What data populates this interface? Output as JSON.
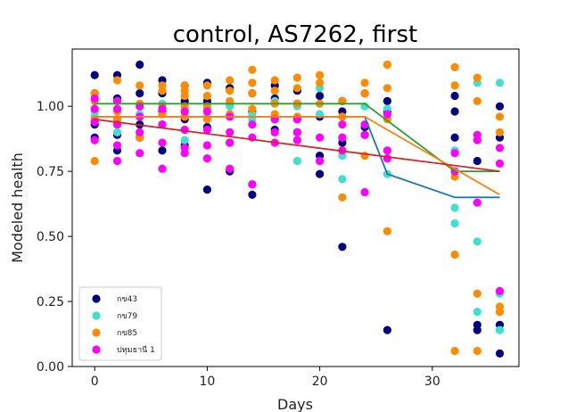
{
  "chart_data": {
    "type": "scatter",
    "title": "control, AS7262, first",
    "xlabel": "Days",
    "ylabel": "Modeled health",
    "xlim": [
      -2,
      37.7
    ],
    "ylim": [
      0,
      1.22
    ],
    "x_ticks": [
      0,
      10,
      20,
      30
    ],
    "y_ticks": [
      "0.00",
      "0.25",
      "0.50",
      "0.75",
      "1.00"
    ],
    "grid": false,
    "legend_position": "lower-left",
    "series": [
      {
        "name": "กข43",
        "color": "#000080",
        "points": [
          [
            0,
            1.12
          ],
          [
            0,
            1.05
          ],
          [
            0,
            0.93
          ],
          [
            0,
            0.88
          ],
          [
            2,
            1.12
          ],
          [
            2,
            1.03
          ],
          [
            2,
            0.95
          ],
          [
            2,
            0.89
          ],
          [
            2,
            0.83
          ],
          [
            4,
            1.16
          ],
          [
            4,
            1.05
          ],
          [
            4,
            0.93
          ],
          [
            4,
            0.88
          ],
          [
            6,
            1.1
          ],
          [
            6,
            1.05
          ],
          [
            6,
            0.98
          ],
          [
            6,
            0.83
          ],
          [
            8,
            1.08
          ],
          [
            8,
            1.02
          ],
          [
            8,
            0.95
          ],
          [
            8,
            0.85
          ],
          [
            10,
            1.09
          ],
          [
            10,
            1.02
          ],
          [
            10,
            0.92
          ],
          [
            10,
            0.68
          ],
          [
            12,
            1.07
          ],
          [
            12,
            1.01
          ],
          [
            12,
            0.86
          ],
          [
            12,
            0.75
          ],
          [
            14,
            1.05
          ],
          [
            14,
            0.98
          ],
          [
            14,
            0.7
          ],
          [
            14,
            0.66
          ],
          [
            16,
            1.08
          ],
          [
            16,
            1.03
          ],
          [
            16,
            0.95
          ],
          [
            16,
            0.91
          ],
          [
            18,
            1.06
          ],
          [
            18,
            1.01
          ],
          [
            18,
            0.95
          ],
          [
            18,
            0.9
          ],
          [
            20,
            1.04
          ],
          [
            20,
            0.96
          ],
          [
            20,
            0.81
          ],
          [
            20,
            0.74
          ],
          [
            22,
            1.02
          ],
          [
            22,
            0.98
          ],
          [
            22,
            0.86
          ],
          [
            22,
            0.46
          ],
          [
            24,
            1.05
          ],
          [
            24,
            0.92
          ],
          [
            24,
            0.89
          ],
          [
            26,
            1.02
          ],
          [
            26,
            0.98
          ],
          [
            26,
            0.14
          ],
          [
            32,
            1.04
          ],
          [
            32,
            0.98
          ],
          [
            32,
            0.88
          ],
          [
            34,
            0.79
          ],
          [
            34,
            0.16
          ],
          [
            34,
            0.14
          ],
          [
            36,
            1.0
          ],
          [
            36,
            0.88
          ],
          [
            36,
            0.16
          ],
          [
            36,
            0.05
          ]
        ]
      },
      {
        "name": "กข79",
        "color": "#40e0d0",
        "points": [
          [
            0,
            0.96
          ],
          [
            0,
            0.98
          ],
          [
            2,
            0.98
          ],
          [
            2,
            0.9
          ],
          [
            4,
            0.97
          ],
          [
            4,
            0.89
          ],
          [
            6,
            1.01
          ],
          [
            6,
            0.93
          ],
          [
            8,
            0.98
          ],
          [
            8,
            0.87
          ],
          [
            10,
            0.99
          ],
          [
            10,
            0.96
          ],
          [
            12,
            1.0
          ],
          [
            12,
            0.86
          ],
          [
            14,
            0.97
          ],
          [
            14,
            0.95
          ],
          [
            16,
            1.02
          ],
          [
            16,
            0.95
          ],
          [
            18,
            1.0
          ],
          [
            18,
            0.79
          ],
          [
            20,
            1.07
          ],
          [
            20,
            0.97
          ],
          [
            22,
            0.88
          ],
          [
            22,
            0.81
          ],
          [
            22,
            0.72
          ],
          [
            24,
            1.0
          ],
          [
            24,
            0.93
          ],
          [
            26,
            0.99
          ],
          [
            26,
            0.74
          ],
          [
            32,
            0.83
          ],
          [
            32,
            0.61
          ],
          [
            32,
            0.55
          ],
          [
            34,
            1.09
          ],
          [
            34,
            0.48
          ],
          [
            34,
            0.21
          ],
          [
            36,
            1.09
          ],
          [
            36,
            0.28
          ],
          [
            36,
            0.14
          ]
        ]
      },
      {
        "name": "กข85",
        "color": "#ff8c00",
        "points": [
          [
            0,
            1.05
          ],
          [
            0,
            1.02
          ],
          [
            0,
            0.95
          ],
          [
            0,
            0.79
          ],
          [
            2,
            1.1
          ],
          [
            2,
            1.02
          ],
          [
            2,
            0.98
          ],
          [
            2,
            0.95
          ],
          [
            4,
            1.08
          ],
          [
            4,
            1.01
          ],
          [
            4,
            0.96
          ],
          [
            4,
            0.88
          ],
          [
            6,
            1.08
          ],
          [
            6,
            1.06
          ],
          [
            6,
            1.0
          ],
          [
            6,
            0.97
          ],
          [
            8,
            1.08
          ],
          [
            8,
            1.06
          ],
          [
            8,
            1.04
          ],
          [
            8,
            1.0
          ],
          [
            8,
            0.96
          ],
          [
            10,
            1.08
          ],
          [
            10,
            1.04
          ],
          [
            10,
            1.0
          ],
          [
            10,
            0.95
          ],
          [
            12,
            1.1
          ],
          [
            12,
            1.06
          ],
          [
            12,
            1.02
          ],
          [
            12,
            0.97
          ],
          [
            14,
            1.14
          ],
          [
            14,
            1.09
          ],
          [
            14,
            1.05
          ],
          [
            14,
            0.99
          ],
          [
            16,
            1.1
          ],
          [
            16,
            1.06
          ],
          [
            16,
            1.01
          ],
          [
            16,
            0.97
          ],
          [
            18,
            1.11
          ],
          [
            18,
            1.07
          ],
          [
            18,
            1.01
          ],
          [
            18,
            0.96
          ],
          [
            20,
            1.12
          ],
          [
            20,
            1.09
          ],
          [
            20,
            1.01
          ],
          [
            20,
            0.79
          ],
          [
            22,
            1.02
          ],
          [
            22,
            0.96
          ],
          [
            22,
            0.65
          ],
          [
            24,
            1.09
          ],
          [
            24,
            1.05
          ],
          [
            24,
            0.81
          ],
          [
            26,
            1.16
          ],
          [
            26,
            1.07
          ],
          [
            26,
            0.95
          ],
          [
            26,
            0.52
          ],
          [
            32,
            1.15
          ],
          [
            32,
            1.08
          ],
          [
            32,
            0.73
          ],
          [
            32,
            0.43
          ],
          [
            32,
            0.06
          ],
          [
            34,
            1.11
          ],
          [
            34,
            1.02
          ],
          [
            34,
            0.28
          ],
          [
            34,
            0.06
          ],
          [
            36,
            0.96
          ],
          [
            36,
            0.9
          ],
          [
            36,
            0.23
          ],
          [
            36,
            0.21
          ]
        ]
      },
      {
        "name": "ปทุมธานี 1",
        "color": "#ff00ff",
        "points": [
          [
            0,
            1.03
          ],
          [
            0,
            0.99
          ],
          [
            0,
            0.94
          ],
          [
            0,
            0.87
          ],
          [
            2,
            1.02
          ],
          [
            2,
            0.99
          ],
          [
            2,
            0.93
          ],
          [
            2,
            0.85
          ],
          [
            2,
            0.79
          ],
          [
            4,
            1.0
          ],
          [
            4,
            0.96
          ],
          [
            4,
            0.9
          ],
          [
            4,
            0.82
          ],
          [
            6,
            0.99
          ],
          [
            6,
            0.93
          ],
          [
            6,
            0.86
          ],
          [
            6,
            0.76
          ],
          [
            8,
            0.98
          ],
          [
            8,
            0.91
          ],
          [
            8,
            0.84
          ],
          [
            8,
            0.82
          ],
          [
            10,
            0.98
          ],
          [
            10,
            0.91
          ],
          [
            10,
            0.85
          ],
          [
            10,
            0.8
          ],
          [
            12,
            0.96
          ],
          [
            12,
            0.9
          ],
          [
            12,
            0.86
          ],
          [
            12,
            0.76
          ],
          [
            14,
            0.93
          ],
          [
            14,
            0.88
          ],
          [
            14,
            0.7
          ],
          [
            16,
            0.95
          ],
          [
            16,
            0.9
          ],
          [
            16,
            0.86
          ],
          [
            18,
            0.95
          ],
          [
            18,
            0.9
          ],
          [
            18,
            0.87
          ],
          [
            20,
            0.88
          ],
          [
            20,
            0.79
          ],
          [
            22,
            0.93
          ],
          [
            22,
            0.88
          ],
          [
            22,
            0.83
          ],
          [
            24,
            0.93
          ],
          [
            24,
            0.89
          ],
          [
            24,
            0.67
          ],
          [
            26,
            0.97
          ],
          [
            26,
            0.83
          ],
          [
            26,
            0.8
          ],
          [
            32,
            0.82
          ],
          [
            32,
            0.75
          ],
          [
            34,
            0.89
          ],
          [
            34,
            0.87
          ],
          [
            34,
            0.63
          ],
          [
            36,
            0.84
          ],
          [
            36,
            0.78
          ],
          [
            36,
            0.29
          ]
        ]
      }
    ],
    "fit_lines": [
      {
        "color": "#1f77b4",
        "points": [
          [
            0,
            0.96
          ],
          [
            24,
            0.96
          ],
          [
            26,
            0.74
          ],
          [
            32,
            0.65
          ],
          [
            36,
            0.65
          ]
        ]
      },
      {
        "color": "#2ca02c",
        "points": [
          [
            0,
            1.01
          ],
          [
            24,
            1.01
          ],
          [
            32,
            0.75
          ],
          [
            36,
            0.75
          ]
        ]
      },
      {
        "color": "#ff7f0e",
        "points": [
          [
            0,
            0.96
          ],
          [
            24,
            0.96
          ],
          [
            36,
            0.66
          ]
        ]
      },
      {
        "color": "#d62728",
        "points": [
          [
            0,
            0.95
          ],
          [
            36,
            0.75
          ]
        ]
      }
    ]
  }
}
